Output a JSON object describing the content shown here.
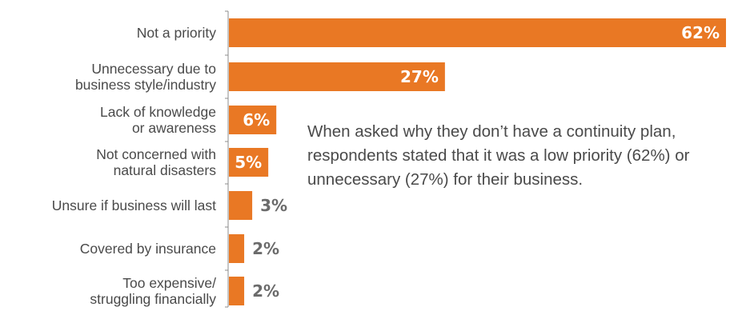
{
  "chart_data": {
    "type": "bar",
    "orientation": "horizontal",
    "categories": [
      [
        "Not a priority"
      ],
      [
        "Unnecessary due to",
        "business style/industry"
      ],
      [
        "Lack of knowledge",
        "or awareness"
      ],
      [
        "Not concerned with",
        "natural disasters"
      ],
      [
        "Unsure if business will last"
      ],
      [
        "Covered by insurance"
      ],
      [
        "Too expensive/",
        "struggling financially"
      ]
    ],
    "values": [
      62,
      27,
      6,
      5,
      3,
      2,
      2
    ],
    "value_labels": [
      "62%",
      "27%",
      "6%",
      "5%",
      "3%",
      "2%",
      "2%"
    ],
    "xlim": [
      0,
      62
    ],
    "legend": "none",
    "grid": false
  },
  "colors": {
    "bar": "#e97824",
    "label_inside": "#ffffff",
    "label_outside": "#6b6b6b",
    "axis": "#8c8c8c",
    "text": "#4a4a4a"
  },
  "annotation": "When asked why they don’t have a continuity plan, respondents stated that it was a low priority (62%) or unnecessary (27%) for their business."
}
